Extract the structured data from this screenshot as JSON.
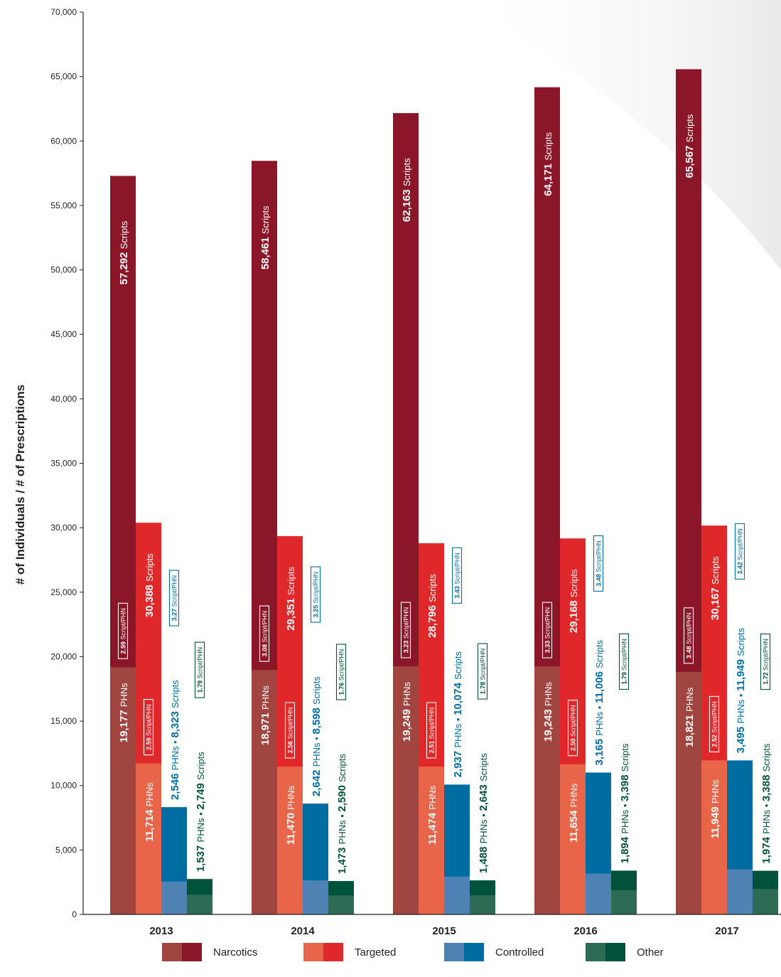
{
  "chart_data": {
    "type": "bar",
    "ylabel": "# of Individuals / # of Prescriptions",
    "ylim": [
      0,
      70000
    ],
    "y_ticks": [
      0,
      5000,
      10000,
      15000,
      20000,
      25000,
      30000,
      35000,
      40000,
      45000,
      50000,
      55000,
      60000,
      65000,
      70000
    ],
    "y_tick_labels": [
      "0",
      "5,000",
      "10,000",
      "15,000",
      "20,000",
      "25,000",
      "30,000",
      "35,000",
      "40,000",
      "45,000",
      "50,000",
      "55,000",
      "60,000",
      "65,000",
      "70,000"
    ],
    "categories": [
      "2013",
      "2014",
      "2015",
      "2016",
      "2017"
    ],
    "unit_phns": "PHNs",
    "unit_scripts": "Scripts",
    "ratio_unit": "Script/PHN",
    "separator": "•",
    "legend_position": "bottom",
    "series": [
      {
        "name": "Narcotics",
        "light_color": "#a0453f",
        "dark_color": "#8a1628",
        "phns": [
          19177,
          18971,
          19249,
          19243,
          18821
        ],
        "phns_labels": [
          "19,177",
          "18,971",
          "19,249",
          "19,243",
          "18,821"
        ],
        "scripts": [
          57292,
          58461,
          62163,
          64171,
          65567
        ],
        "scripts_labels": [
          "57,292",
          "58,461",
          "62,163",
          "64,171",
          "65,567"
        ],
        "ratio_labels": [
          "2.99",
          "3.08",
          "3.23",
          "3.33",
          "3.48"
        ]
      },
      {
        "name": "Targeted",
        "light_color": "#e86549",
        "dark_color": "#e0282a",
        "phns": [
          11714,
          11470,
          11474,
          11654,
          11949
        ],
        "phns_labels": [
          "11,714",
          "11,470",
          "11,474",
          "11,654",
          "11,949"
        ],
        "scripts": [
          30388,
          29351,
          28796,
          29168,
          30167
        ],
        "scripts_labels": [
          "30,388",
          "29,351",
          "28,796",
          "29,168",
          "30,167"
        ],
        "ratio_labels": [
          "2.59",
          "2.56",
          "2.51",
          "2.50",
          "2.52"
        ]
      },
      {
        "name": "Controlled",
        "light_color": "#4e82b3",
        "dark_color": "#006da2",
        "phns": [
          2546,
          2642,
          2937,
          3165,
          3495
        ],
        "phns_labels": [
          "2,546",
          "2,642",
          "2,937",
          "3,165",
          "3,495"
        ],
        "scripts": [
          8323,
          8598,
          10074,
          11006,
          11949
        ],
        "scripts_labels": [
          "8,323",
          "8,598",
          "10,074",
          "11,006",
          "11,949"
        ],
        "ratio_labels": [
          "3.27",
          "3.25",
          "3.43",
          "3.48",
          "3.42"
        ]
      },
      {
        "name": "Other",
        "light_color": "#2e6b55",
        "dark_color": "#00523a",
        "phns": [
          1537,
          1473,
          1488,
          1894,
          1974
        ],
        "phns_labels": [
          "1,537",
          "1,473",
          "1,488",
          "1,894",
          "1,974"
        ],
        "scripts": [
          2749,
          2590,
          2643,
          3398,
          3388
        ],
        "scripts_labels": [
          "2,749",
          "2,590",
          "2,643",
          "3,398",
          "3,388"
        ],
        "ratio_labels": [
          "1.79",
          "1.76",
          "1.78",
          "1.79",
          "1.72"
        ]
      }
    ]
  }
}
